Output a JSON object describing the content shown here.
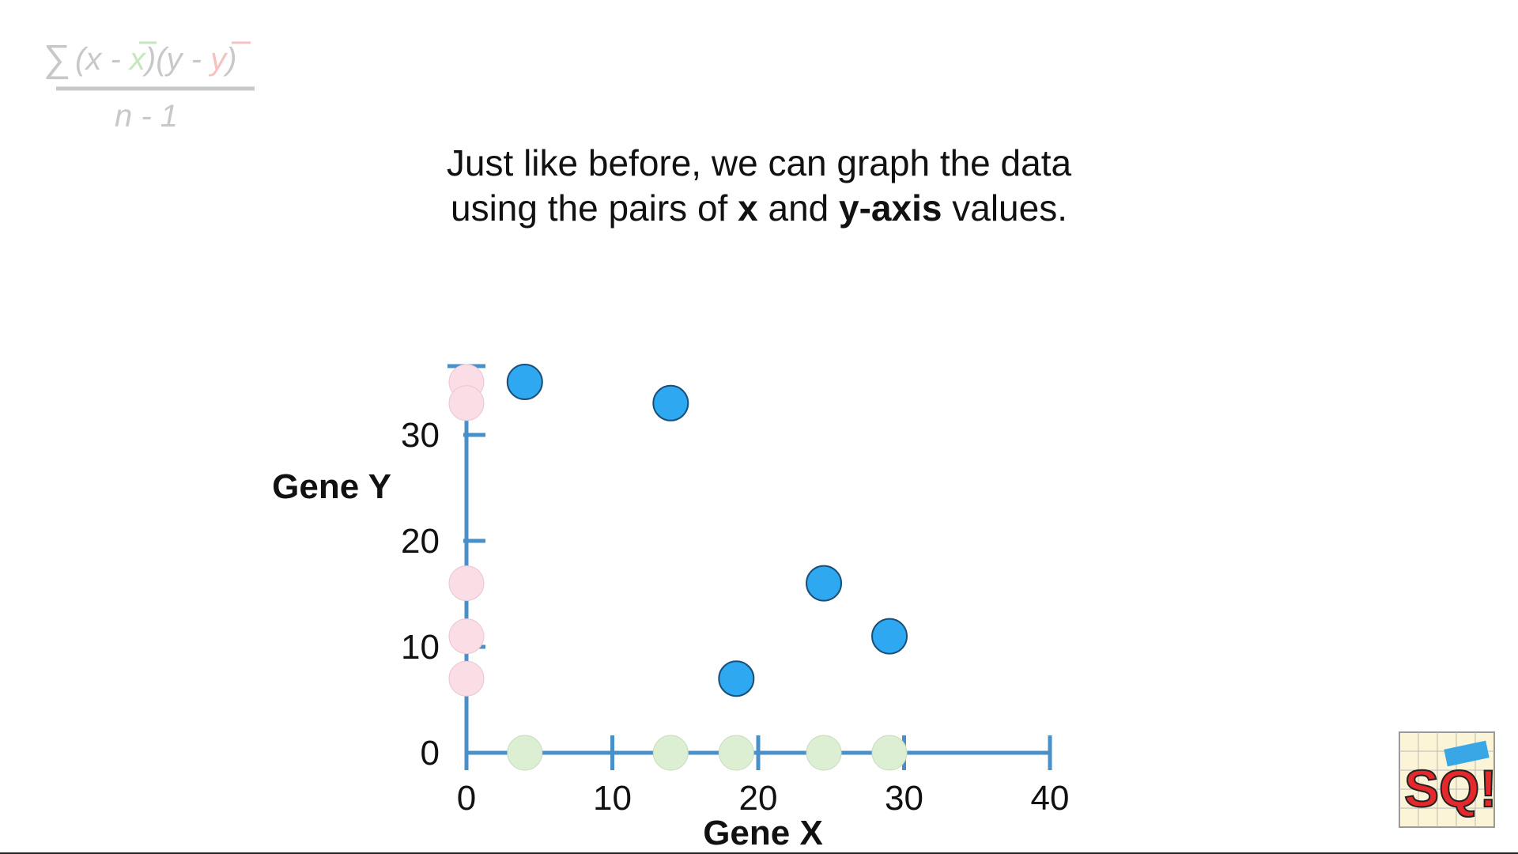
{
  "formula": {
    "sum_sign": "∑",
    "x": "x",
    "x_bar": "x",
    "y": "y",
    "y_bar": "y",
    "minus": "-",
    "denominator": "n - 1"
  },
  "caption": {
    "line1": "Just like before, we can graph the data",
    "line2_a": "using the pairs of ",
    "line2_x": "x",
    "line2_b": " and ",
    "line2_y": "y-axis",
    "line2_c": " values."
  },
  "chart_data": {
    "type": "scatter",
    "xlabel": "Gene X",
    "ylabel": "Gene Y",
    "xlim": [
      0,
      40
    ],
    "ylim": [
      0,
      40
    ],
    "xticks": [
      0,
      10,
      20,
      30,
      40
    ],
    "yticks": [
      0,
      10,
      20,
      30
    ],
    "x": [
      4,
      14,
      18.5,
      24.5,
      29
    ],
    "y": [
      35,
      33,
      7,
      16,
      11
    ],
    "colors": {
      "axis": "#4a90c8",
      "point": "#2ea8f0",
      "x_projection": "#dcefd2",
      "y_projection": "#fbdde6"
    }
  },
  "logo": {
    "text": "SQ!"
  }
}
